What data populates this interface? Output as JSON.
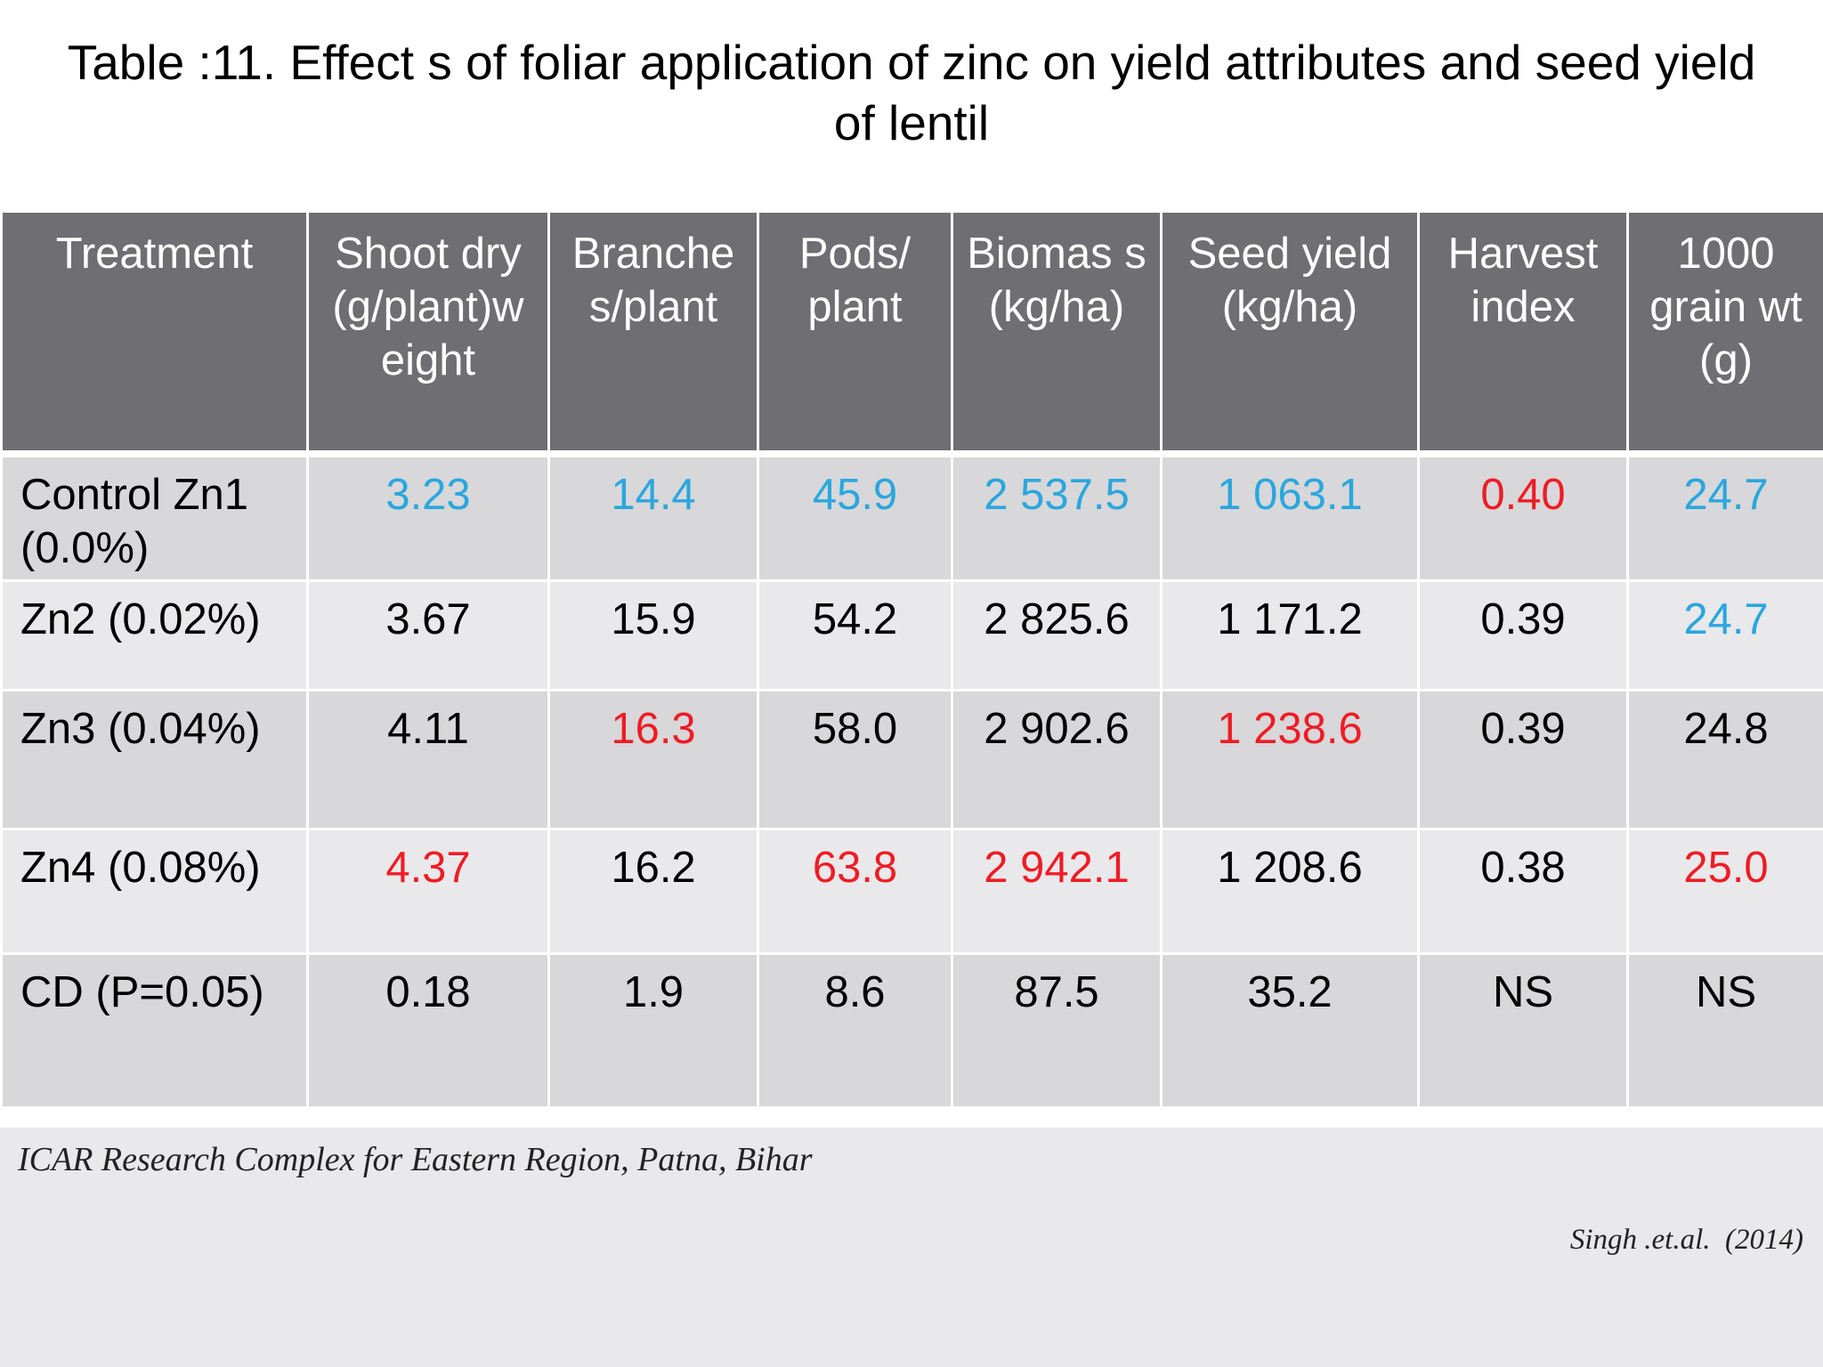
{
  "title": {
    "line1": "Table :11.   Effect s of foliar application of zinc on yield attributes and seed yield",
    "line2": "of lentil"
  },
  "table": {
    "headers": [
      "Treatment",
      "Shoot dry (g/plant)w eight",
      "Branche s/plant",
      "Pods/ plant",
      "Biomas s (kg/ha)",
      "Seed yield (kg/ha)",
      "Harvest index",
      "1000 grain wt (g)"
    ],
    "rows": [
      {
        "treatment": "Control Zn1 (0.0%)",
        "cells": [
          {
            "value": "3.23",
            "color": "#29a7de"
          },
          {
            "value": "14.4",
            "color": "#29a7de"
          },
          {
            "value": "45.9",
            "color": "#29a7de"
          },
          {
            "value": "2 537.5",
            "color": "#29a7de"
          },
          {
            "value": "1 063.1",
            "color": "#29a7de"
          },
          {
            "value": "0.40",
            "color": "#ee1c25"
          },
          {
            "value": "24.7",
            "color": "#29a7de"
          }
        ]
      },
      {
        "treatment": "Zn2 (0.02%)",
        "cells": [
          {
            "value": "3.67",
            "color": "#000000"
          },
          {
            "value": "15.9",
            "color": "#000000"
          },
          {
            "value": "54.2",
            "color": "#000000"
          },
          {
            "value": "2 825.6",
            "color": "#000000"
          },
          {
            "value": "1 171.2",
            "color": "#000000"
          },
          {
            "value": "0.39",
            "color": "#000000"
          },
          {
            "value": "24.7",
            "color": "#29a7de"
          }
        ]
      },
      {
        "treatment": "Zn3 (0.04%)",
        "cells": [
          {
            "value": "4.11",
            "color": "#000000"
          },
          {
            "value": "16.3",
            "color": "#ee1c25"
          },
          {
            "value": "58.0",
            "color": "#000000"
          },
          {
            "value": "2 902.6",
            "color": "#000000"
          },
          {
            "value": "1 238.6",
            "color": "#ee1c25"
          },
          {
            "value": "0.39",
            "color": "#000000"
          },
          {
            "value": "24.8",
            "color": "#000000"
          }
        ]
      },
      {
        "treatment": "Zn4 (0.08%)",
        "cells": [
          {
            "value": "4.37",
            "color": "#ee1c25"
          },
          {
            "value": "16.2",
            "color": "#000000"
          },
          {
            "value": "63.8",
            "color": "#ee1c25"
          },
          {
            "value": "2 942.1",
            "color": "#ee1c25"
          },
          {
            "value": "1 208.6",
            "color": "#000000"
          },
          {
            "value": "0.38",
            "color": "#000000"
          },
          {
            "value": "25.0",
            "color": "#ee1c25"
          }
        ]
      },
      {
        "treatment": "CD (P=0.05)",
        "cells": [
          {
            "value": "0.18",
            "color": "#000000"
          },
          {
            "value": "1.9",
            "color": "#000000"
          },
          {
            "value": "8.6",
            "color": "#000000"
          },
          {
            "value": "87.5",
            "color": "#000000"
          },
          {
            "value": "35.2",
            "color": "#000000"
          },
          {
            "value": "NS",
            "color": "#000000"
          },
          {
            "value": "NS",
            "color": "#000000"
          }
        ]
      }
    ]
  },
  "footer": {
    "source": "ICAR Research Complex for Eastern Region, Patna, Bihar",
    "citation": "Singh .et.al.  (2014)"
  }
}
